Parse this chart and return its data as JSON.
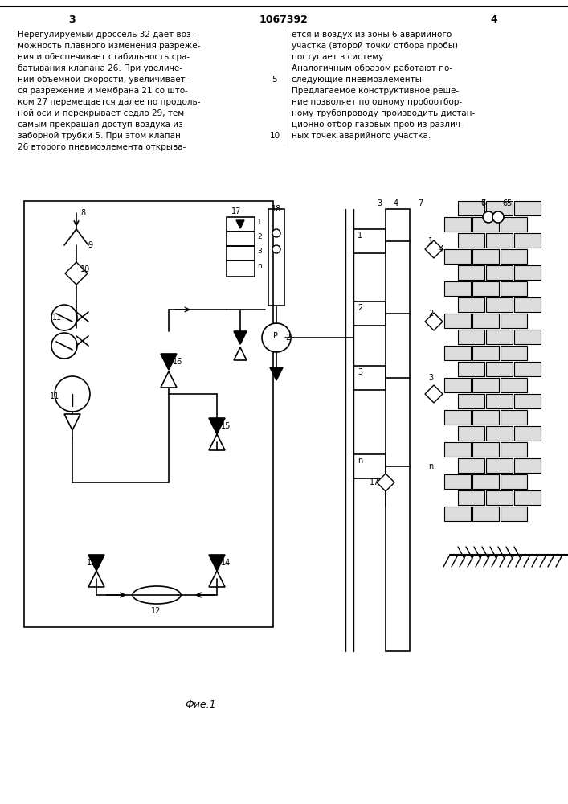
{
  "page_number_left": "3",
  "page_number_right": "4",
  "patent_number": "1067392",
  "figure_label": "Фие.1",
  "bg_color": "#ffffff",
  "text_color": "#000000",
  "line_color": "#000000",
  "text_left": [
    "Нерегулируемый дроссель 32 дает воз-",
    "можность плавного изменения разреже-",
    "ния и обеспечивает стабильность сра-",
    "батывания клапана 26. При увеличе-",
    "нии объемной скорости, увеличивает-",
    "ся разрежение и мембрана 21 со што-",
    "ком 27 перемещается далее по продоль-",
    "ной оси и перекрывает седло 29, тем",
    "самым прекращая доступ воздуха из",
    "заборной трубки 5. При этом клапан",
    "26 второго пневмоэлемента открыва-"
  ],
  "text_right": [
    "ется и воздух из зоны 6 аварийного",
    "участка (второй точки отбора пробы)",
    "поступает в систему.",
    "Аналогичным образом работают по-",
    "следующие пневмоэлементы.",
    "Предлагаемое конструктивное реше-",
    "ние позволяет по одному пробоотбор-",
    "ному трубопроводу производить дистан-",
    "ционно отбор газовых проб из различ-",
    "ных точек аварийного участка."
  ],
  "line_numbers_left": [
    "5",
    "10"
  ],
  "diagram_components": "complex_pneumatic_system"
}
